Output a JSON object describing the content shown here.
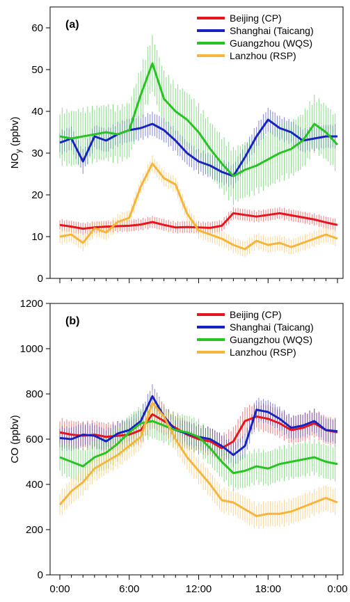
{
  "chart_data": [
    {
      "type": "line",
      "panel_label": "(a)",
      "ylabel_main": "NO",
      "ylabel_sub": "y",
      "ylabel_unit": " (ppbv)",
      "ylim": [
        0,
        65
      ],
      "yticks": [
        0,
        10,
        20,
        30,
        40,
        50,
        60
      ],
      "xlim": [
        0,
        24
      ],
      "xticks": [
        0,
        6,
        12,
        18,
        24
      ],
      "xtick_labels": [],
      "legend_position": "top-right",
      "grid": false,
      "x": [
        0,
        1,
        2,
        3,
        4,
        5,
        6,
        7,
        8,
        9,
        10,
        11,
        12,
        13,
        14,
        15,
        16,
        17,
        18,
        19,
        20,
        21,
        22,
        23,
        24
      ],
      "series": [
        {
          "name": "Beijing (CP)",
          "color": "#e8141b",
          "error": 1.5,
          "values": [
            12.8,
            12.4,
            11.9,
            12.2,
            12.4,
            12.5,
            12.6,
            12.9,
            13.5,
            12.8,
            12.2,
            12.3,
            12.2,
            12.1,
            12.6,
            15.6,
            15.2,
            14.8,
            15.2,
            15.6,
            15.1,
            14.6,
            14.1,
            13.4,
            12.8
          ]
        },
        {
          "name": "Shanghai (Taicang)",
          "color": "#1523c2",
          "error": 3.0,
          "values": [
            32.5,
            33.5,
            28.0,
            34.0,
            33.0,
            34.5,
            35.5,
            36.0,
            37.0,
            35.5,
            33.0,
            30.0,
            28.0,
            27.0,
            25.5,
            24.5,
            29.0,
            34.0,
            38.0,
            36.0,
            35.0,
            33.0,
            33.5,
            34.0,
            34.0
          ]
        },
        {
          "name": "Guangzhou (WQS)",
          "color": "#26c322",
          "error": 7.0,
          "values": [
            34.0,
            33.5,
            34.0,
            34.5,
            35.0,
            34.5,
            35.5,
            44.0,
            51.5,
            43.0,
            40.0,
            38.0,
            35.0,
            31.0,
            27.5,
            24.5,
            26.0,
            27.0,
            28.5,
            30.0,
            31.0,
            33.0,
            37.0,
            35.0,
            32.0
          ]
        },
        {
          "name": "Lanzhou (RSP)",
          "color": "#f7b43a",
          "error": 2.0,
          "values": [
            10.0,
            10.5,
            8.5,
            12.0,
            11.0,
            13.5,
            14.5,
            22.0,
            27.5,
            24.0,
            22.5,
            15.5,
            11.5,
            10.5,
            9.5,
            8.0,
            7.0,
            9.0,
            8.0,
            8.5,
            7.5,
            8.5,
            9.5,
            10.5,
            9.5
          ]
        }
      ]
    },
    {
      "type": "line",
      "panel_label": "(b)",
      "ylabel_main": "CO (ppbv)",
      "ylim": [
        0,
        1200
      ],
      "yticks": [
        0,
        200,
        400,
        600,
        800,
        1000,
        1200
      ],
      "xlim": [
        0,
        24
      ],
      "xticks": [
        0,
        6,
        12,
        18,
        24
      ],
      "xtick_labels": [
        "0:00",
        "6:00",
        "12:00",
        "18:00",
        "0:00"
      ],
      "legend_position": "top-right",
      "grid": false,
      "x": [
        0,
        1,
        2,
        3,
        4,
        5,
        6,
        7,
        8,
        9,
        10,
        11,
        12,
        13,
        14,
        15,
        16,
        17,
        18,
        19,
        20,
        21,
        22,
        23,
        24
      ],
      "series": [
        {
          "name": "Beijing (CP)",
          "color": "#e8141b",
          "error": 65,
          "values": [
            630,
            620,
            615,
            620,
            610,
            615,
            620,
            640,
            710,
            680,
            650,
            620,
            600,
            590,
            560,
            590,
            680,
            700,
            690,
            670,
            640,
            650,
            670,
            640,
            630
          ]
        },
        {
          "name": "Shanghai (Taicang)",
          "color": "#1523c2",
          "error": 55,
          "values": [
            605,
            600,
            620,
            615,
            590,
            625,
            640,
            680,
            790,
            700,
            640,
            625,
            610,
            600,
            570,
            530,
            570,
            730,
            720,
            690,
            650,
            660,
            680,
            640,
            635
          ]
        },
        {
          "name": "Guangzhou (WQS)",
          "color": "#26c322",
          "error": 80,
          "values": [
            520,
            500,
            480,
            520,
            540,
            580,
            630,
            670,
            680,
            660,
            640,
            630,
            610,
            560,
            500,
            450,
            460,
            480,
            470,
            490,
            500,
            510,
            520,
            500,
            490
          ]
        },
        {
          "name": "Lanzhou (RSP)",
          "color": "#f7b43a",
          "error": 60,
          "values": [
            310,
            370,
            410,
            470,
            500,
            530,
            570,
            610,
            760,
            700,
            600,
            520,
            460,
            400,
            330,
            320,
            290,
            260,
            270,
            270,
            280,
            300,
            320,
            340,
            320
          ]
        }
      ]
    }
  ]
}
